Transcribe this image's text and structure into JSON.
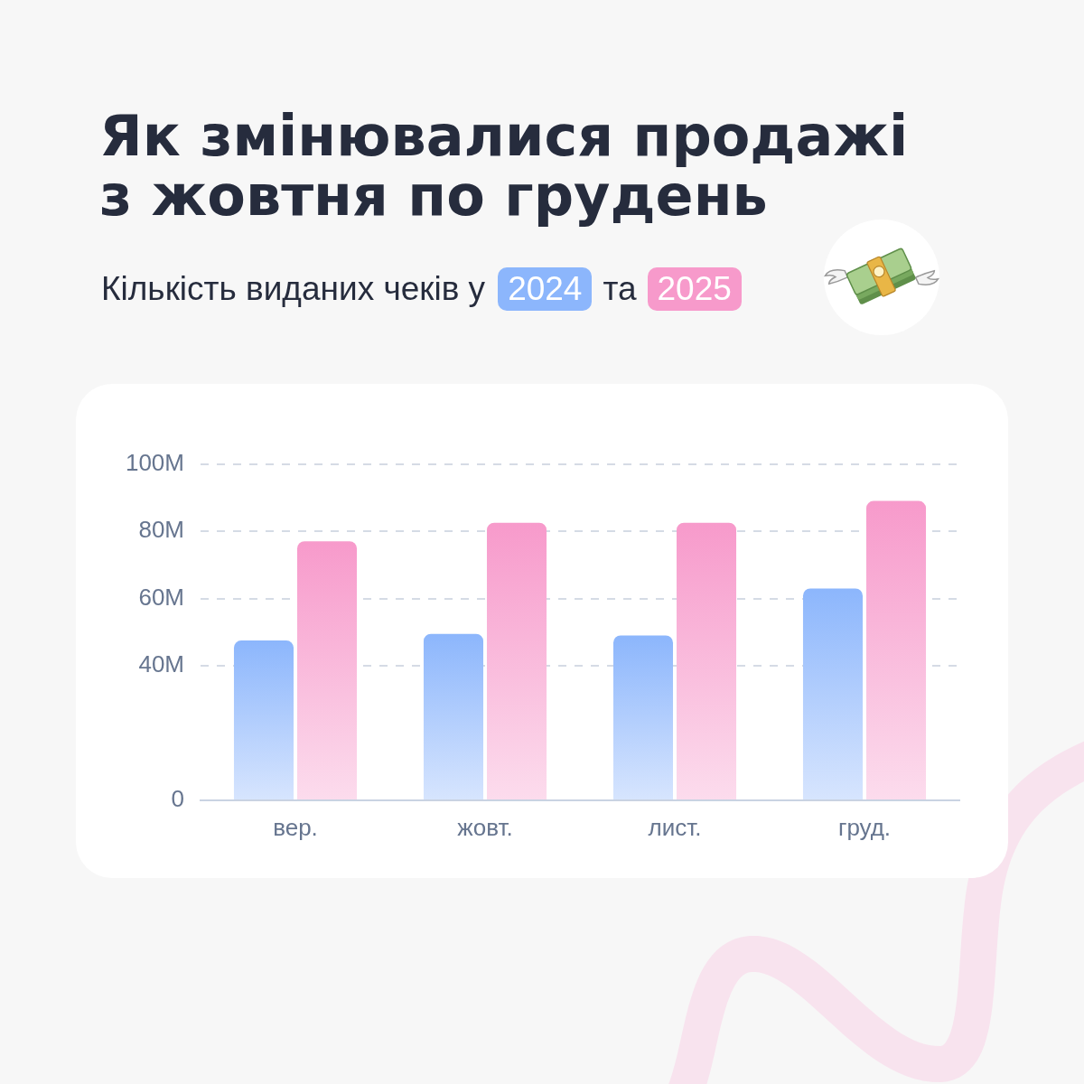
{
  "chart_data": {
    "type": "bar",
    "title": "Як змінювалися продажі з жовтня по грудень",
    "subtitle": "Кількість виданих чеків у",
    "categories": [
      "вер.",
      "жовт.",
      "лист.",
      "груд."
    ],
    "series": [
      {
        "name": "2024",
        "color": "#8cb6fc",
        "values": [
          47.5,
          49.5,
          49,
          63
        ]
      },
      {
        "name": "2025",
        "color": "#f79acb",
        "values": [
          77,
          82.5,
          82.5,
          89
        ]
      }
    ],
    "ylim": [
      0,
      100
    ],
    "yticks": [
      0,
      {
        "value": 40,
        "label": "40M"
      },
      {
        "value": 60,
        "label": "60M"
      },
      {
        "value": 80,
        "label": "80M"
      },
      {
        "value": 100,
        "label": "100M"
      }
    ],
    "grid": "y",
    "legend": "top",
    "annotations": [
      "та"
    ]
  }
}
